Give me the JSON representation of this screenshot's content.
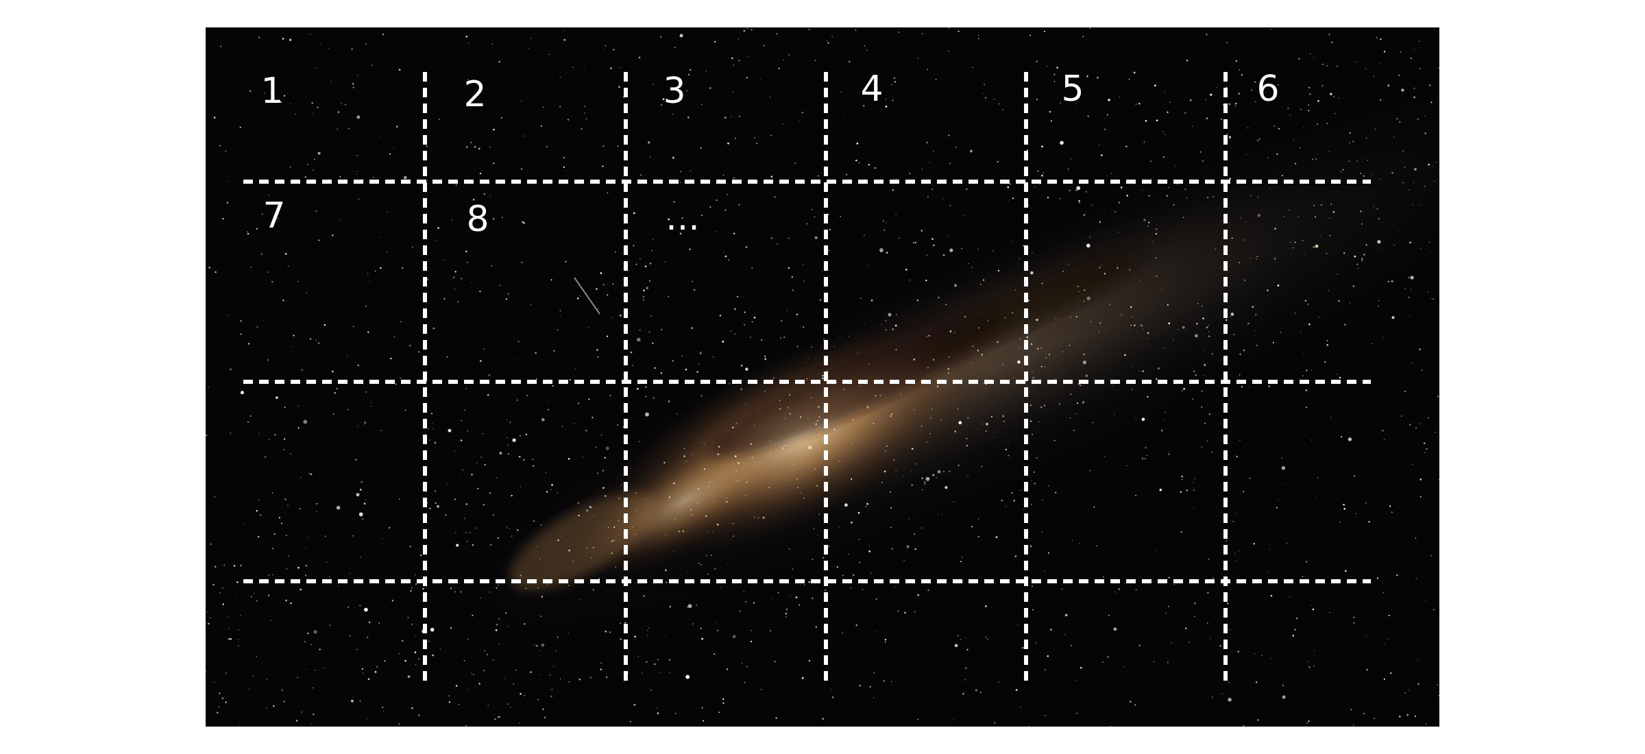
{
  "image": {
    "subject": "night-sky-with-milky-way",
    "colors": {
      "page_background": "#ffffff",
      "sky": "#050507",
      "galaxy_core": "#e7c08e",
      "galaxy_dust": "#8a5a32",
      "grid_lines": "#ffffff",
      "labels": "#ffffff"
    }
  },
  "grid": {
    "line_style": "dashed",
    "rows": 4,
    "columns": 6,
    "labels": [
      "1",
      "2",
      "3",
      "4",
      "5",
      "6",
      "7",
      "8",
      "..."
    ]
  }
}
